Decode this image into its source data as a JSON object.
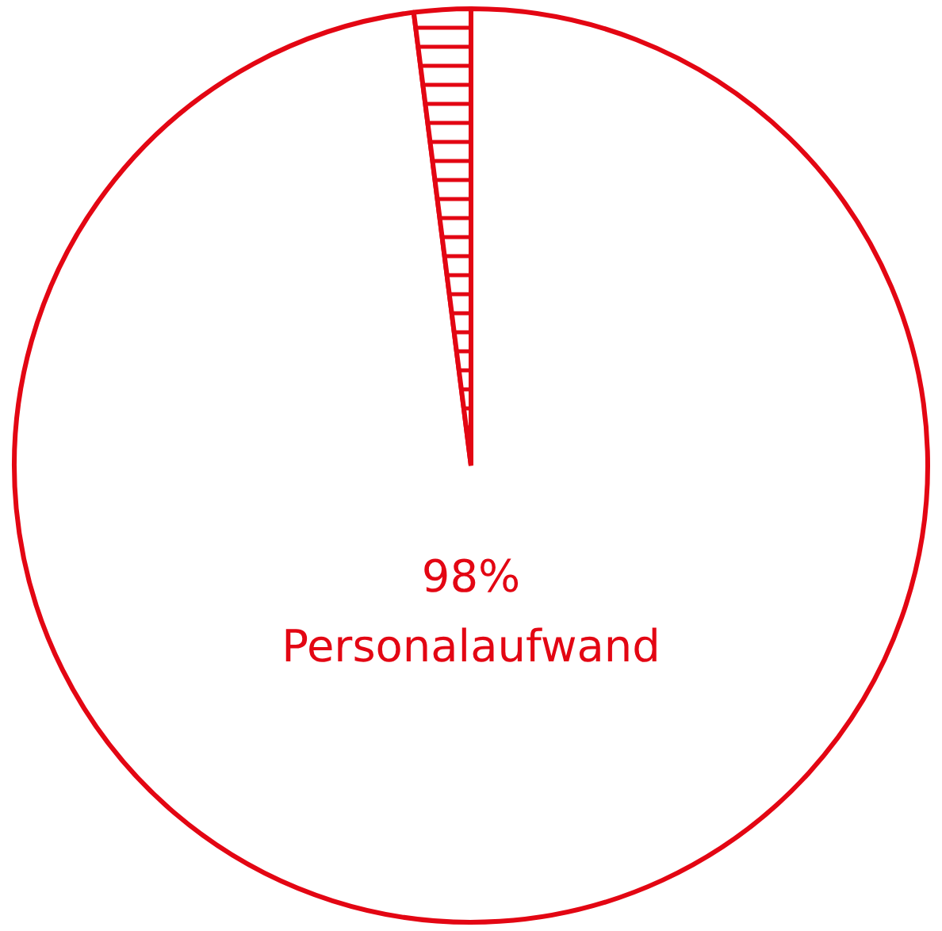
{
  "chart_data": {
    "type": "pie",
    "categories": [
      "Personalaufwand",
      null
    ],
    "values": [
      98,
      2
    ],
    "colors": [
      "#e30613",
      "#e30613"
    ],
    "value_labels": [
      "98%",
      null
    ]
  }
}
